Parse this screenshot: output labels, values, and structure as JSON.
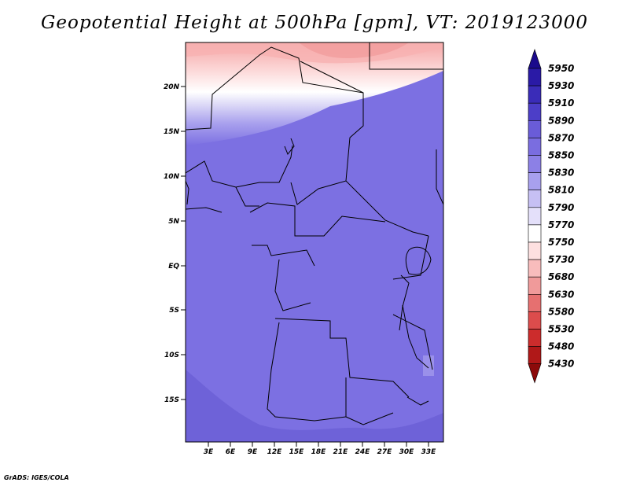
{
  "title": "Geopotential Height at 500hPa [gpm], VT: 2019123000",
  "credit": "GrADS: IGES/COLA",
  "map": {
    "lat_labels": [
      "20N",
      "15N",
      "10N",
      "5N",
      "EQ",
      "5S",
      "10S",
      "15S"
    ],
    "lon_labels": [
      "3E",
      "6E",
      "9E",
      "12E",
      "15E",
      "18E",
      "21E",
      "24E",
      "27E",
      "30E",
      "33E"
    ]
  },
  "colorbar": {
    "levels": [
      "5950",
      "5930",
      "5910",
      "5890",
      "5870",
      "5850",
      "5830",
      "5810",
      "5790",
      "5770",
      "5750",
      "5730",
      "5680",
      "5630",
      "5580",
      "5530",
      "5480",
      "5430"
    ],
    "colors": [
      "#1a0a8c",
      "#2a1aa6",
      "#3a2cb8",
      "#4c3ec8",
      "#6a5cd8",
      "#7a6de0",
      "#8c80e6",
      "#a8a0ee",
      "#c6c0f4",
      "#e4e0fa",
      "#ffffff",
      "#fde0e0",
      "#f8bcbc",
      "#f09a9a",
      "#e67070",
      "#dc4c4c",
      "#cc2c2c",
      "#b01818",
      "#8c0a0a"
    ]
  }
}
